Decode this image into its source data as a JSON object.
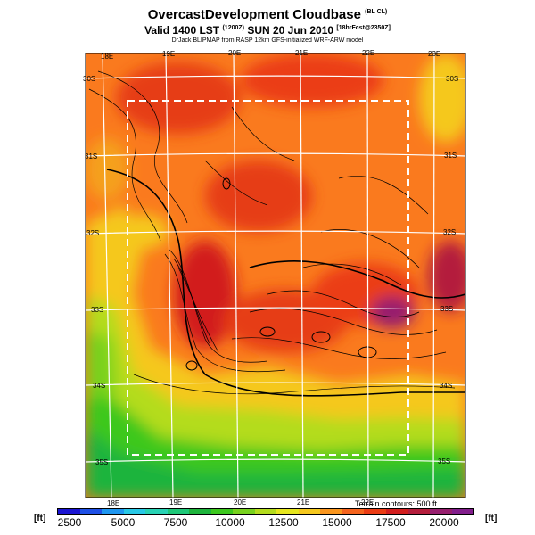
{
  "header": {
    "title": "OvercastDevelopment Cloudbase",
    "title_suffix": "(BL CL)",
    "valid": "Valid 1400 LST",
    "valid_code": "(1200Z)",
    "date": "SUN 20 Jun 2010",
    "forecast_info": "[18hrFcst@2350Z]",
    "credit": "DrJack BLIPMAP from RASP 12km GFS-initialized WRF-ARW model"
  },
  "map": {
    "lon_labels_top": [
      "18E",
      "19E",
      "20E",
      "21E",
      "22E",
      "23E"
    ],
    "lon_labels_bottom": [
      "18E",
      "19E",
      "20E",
      "21E",
      "22E"
    ],
    "lat_labels_left": [
      "30S",
      "31S",
      "32S",
      "33S",
      "34S",
      "35S"
    ],
    "lat_labels_right": [
      "30S",
      "31S",
      "32S",
      "33S",
      "34S",
      "35S"
    ],
    "terrain_note": "Terrain contours: 500 ft"
  },
  "legend": {
    "unit_left": "[ft]",
    "unit_right": "[ft]",
    "ticks": [
      "2500",
      "5000",
      "7500",
      "10000",
      "12500",
      "15000",
      "17500",
      "20000"
    ],
    "colors": [
      "#1a14d2",
      "#1e50e6",
      "#1e96f0",
      "#28c8e6",
      "#28d2b4",
      "#1ec878",
      "#1eb43c",
      "#3cc81e",
      "#78d21e",
      "#b4dc1e",
      "#e6e61e",
      "#f5c81e",
      "#fa961e",
      "#f5641e",
      "#eb3c14",
      "#d21e1e",
      "#b41e3c",
      "#961e6e",
      "#821e8c"
    ]
  }
}
